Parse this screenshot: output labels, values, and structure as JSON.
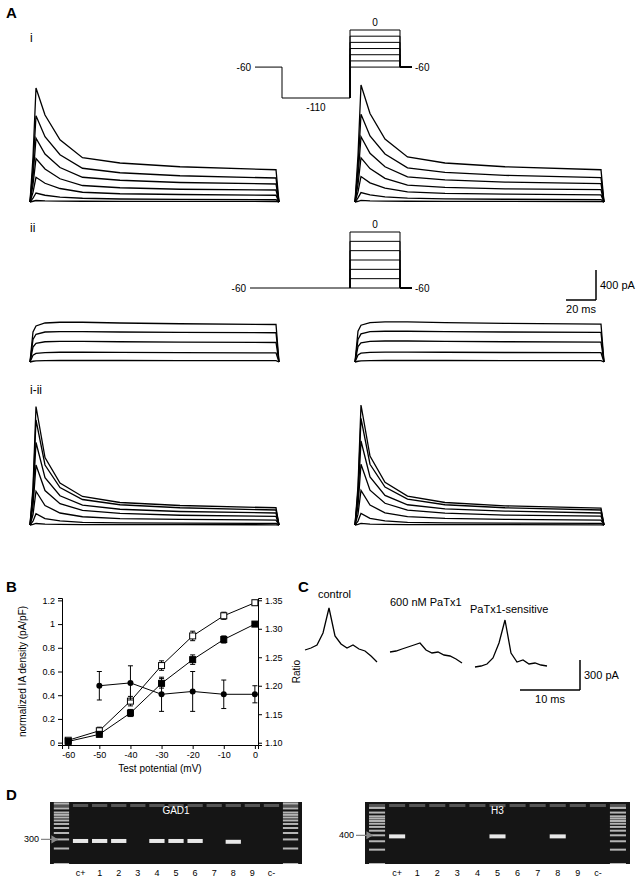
{
  "chart_data": [
    {
      "type": "traces",
      "title": "A",
      "subtitle": "i",
      "color": "#000000",
      "x": [
        0,
        2,
        4,
        10,
        20,
        35,
        60,
        100,
        164,
        166
      ],
      "series": [
        {
          "values": [
            0,
            600,
            1520,
            1160,
            830,
            590,
            520,
            470,
            430,
            0
          ]
        },
        {
          "values": [
            0,
            450,
            1150,
            870,
            630,
            450,
            390,
            350,
            320,
            0
          ]
        },
        {
          "values": [
            0,
            330,
            850,
            640,
            460,
            330,
            290,
            260,
            240,
            0
          ]
        },
        {
          "values": [
            0,
            230,
            580,
            440,
            310,
            220,
            190,
            170,
            160,
            0
          ]
        },
        {
          "values": [
            0,
            130,
            330,
            250,
            180,
            130,
            110,
            100,
            90,
            0
          ]
        },
        {
          "values": [
            0,
            50,
            120,
            90,
            65,
            50,
            40,
            35,
            30,
            0
          ]
        },
        {
          "values": [
            0,
            10,
            20,
            15,
            12,
            10,
            8,
            8,
            7,
            0
          ]
        }
      ],
      "protocol": {
        "holding": -60,
        "prepulse": -110,
        "steps": [
          -60,
          -50,
          -40,
          -30,
          -20,
          -10,
          0
        ]
      }
    },
    {
      "type": "traces",
      "color": "#000000",
      "x": [
        0,
        2,
        4,
        10,
        20,
        35,
        60,
        100,
        164,
        166
      ],
      "series": [
        {
          "values": [
            0,
            620,
            1560,
            1180,
            840,
            600,
            520,
            470,
            430,
            0
          ]
        },
        {
          "values": [
            0,
            460,
            1170,
            880,
            640,
            455,
            395,
            355,
            325,
            0
          ]
        },
        {
          "values": [
            0,
            340,
            870,
            650,
            470,
            335,
            295,
            265,
            245,
            0
          ]
        },
        {
          "values": [
            0,
            235,
            590,
            445,
            315,
            225,
            195,
            175,
            165,
            0
          ]
        },
        {
          "values": [
            0,
            135,
            340,
            255,
            185,
            135,
            115,
            105,
            95,
            0
          ]
        },
        {
          "values": [
            0,
            55,
            125,
            95,
            68,
            52,
            42,
            37,
            32,
            0
          ]
        },
        {
          "values": [
            0,
            10,
            22,
            16,
            12,
            10,
            9,
            8,
            7,
            0
          ]
        }
      ]
    },
    {
      "type": "traces",
      "subtitle": "ii",
      "color": "#000000",
      "x": [
        0,
        2,
        4,
        10,
        20,
        35,
        60,
        100,
        164,
        166
      ],
      "series": [
        {
          "values": [
            0,
            400,
            480,
            520,
            530,
            530,
            520,
            510,
            500,
            0
          ]
        },
        {
          "values": [
            0,
            300,
            370,
            400,
            405,
            405,
            400,
            395,
            390,
            0
          ]
        },
        {
          "values": [
            0,
            200,
            250,
            270,
            275,
            275,
            270,
            265,
            260,
            0
          ]
        },
        {
          "values": [
            0,
            90,
            115,
            125,
            130,
            130,
            128,
            125,
            122,
            0
          ]
        },
        {
          "values": [
            0,
            10,
            15,
            18,
            20,
            20,
            20,
            19,
            18,
            0
          ]
        }
      ],
      "protocol": {
        "holding": -60,
        "steps": [
          -60,
          -50,
          -40,
          -30,
          -20,
          -10,
          0
        ]
      }
    },
    {
      "type": "traces",
      "color": "#000000",
      "x": [
        0,
        2,
        4,
        10,
        20,
        35,
        60,
        100,
        164,
        166
      ],
      "series": [
        {
          "values": [
            0,
            410,
            490,
            525,
            535,
            535,
            525,
            515,
            505,
            0
          ]
        },
        {
          "values": [
            0,
            300,
            375,
            405,
            410,
            410,
            405,
            400,
            395,
            0
          ]
        },
        {
          "values": [
            0,
            205,
            255,
            275,
            280,
            280,
            275,
            270,
            265,
            0
          ]
        },
        {
          "values": [
            0,
            95,
            118,
            128,
            132,
            132,
            130,
            127,
            124,
            0
          ]
        },
        {
          "values": [
            0,
            10,
            15,
            18,
            20,
            20,
            20,
            19,
            18,
            0
          ]
        }
      ],
      "scale_bar": {
        "x": 20,
        "y": 400,
        "x_label": "20 ms",
        "y_label": "400 pA"
      }
    },
    {
      "type": "traces",
      "subtitle": "i-ii",
      "color": "#000000",
      "x": [
        0,
        2,
        4,
        10,
        20,
        35,
        60,
        100,
        164,
        166
      ],
      "series": [
        {
          "values": [
            0,
            500,
            1580,
            900,
            560,
            380,
            300,
            260,
            230,
            0
          ]
        },
        {
          "values": [
            0,
            440,
            1400,
            800,
            500,
            340,
            270,
            230,
            200,
            0
          ]
        },
        {
          "values": [
            0,
            350,
            1100,
            630,
            390,
            265,
            210,
            180,
            160,
            0
          ]
        },
        {
          "values": [
            0,
            250,
            800,
            460,
            285,
            195,
            155,
            130,
            115,
            0
          ]
        },
        {
          "values": [
            0,
            140,
            450,
            260,
            160,
            110,
            85,
            75,
            65,
            0
          ]
        },
        {
          "values": [
            0,
            50,
            150,
            85,
            55,
            35,
            28,
            25,
            22,
            0
          ]
        },
        {
          "values": [
            0,
            8,
            20,
            12,
            8,
            5,
            4,
            4,
            3,
            0
          ]
        }
      ]
    },
    {
      "type": "traces",
      "color": "#000000",
      "x": [
        0,
        2,
        4,
        10,
        20,
        35,
        60,
        100,
        164,
        166
      ],
      "series": [
        {
          "values": [
            0,
            520,
            1600,
            920,
            570,
            385,
            300,
            255,
            225,
            0
          ]
        },
        {
          "values": [
            0,
            450,
            1420,
            810,
            505,
            345,
            270,
            230,
            200,
            0
          ]
        },
        {
          "values": [
            0,
            355,
            1120,
            640,
            395,
            270,
            215,
            185,
            160,
            0
          ]
        },
        {
          "values": [
            0,
            255,
            810,
            465,
            290,
            198,
            158,
            132,
            118,
            0
          ]
        },
        {
          "values": [
            0,
            145,
            460,
            265,
            163,
            112,
            87,
            76,
            66,
            0
          ]
        },
        {
          "values": [
            0,
            52,
            155,
            88,
            56,
            36,
            29,
            26,
            23,
            0
          ]
        },
        {
          "values": [
            0,
            8,
            21,
            12,
            8,
            5,
            4,
            4,
            3,
            0
          ]
        }
      ]
    },
    {
      "type": "traces",
      "title": "C",
      "color": "#000000",
      "x": [
        0,
        1,
        2,
        3,
        4,
        5,
        6,
        7,
        8,
        9,
        10,
        11,
        12
      ],
      "series": [
        {
          "name": "control",
          "values": [
            180,
            200,
            230,
            350,
            600,
            320,
            240,
            200,
            230,
            190,
            170,
            120,
            60
          ]
        },
        {
          "name": "600 nM PaTx1",
          "values": [
            160,
            170,
            190,
            210,
            230,
            250,
            180,
            150,
            160,
            130,
            120,
            90,
            50
          ]
        },
        {
          "name": "PaTx1-sensitive",
          "values": [
            10,
            20,
            40,
            100,
            250,
            480,
            150,
            60,
            80,
            40,
            50,
            30,
            20
          ]
        }
      ],
      "scale_bar": {
        "x": 10,
        "y": 300,
        "x_label": "10 ms",
        "y_label": "300 pA"
      }
    },
    {
      "type": "line",
      "title": "B",
      "x": [
        -60,
        -50,
        -40,
        -30,
        -20,
        -10,
        0
      ],
      "xlim": [
        -62,
        1
      ],
      "xticks": [
        -60,
        -50,
        -40,
        -30,
        -20,
        -10,
        0
      ],
      "ylim": [
        -0.02,
        1.22
      ],
      "yticks": [
        0,
        0.2,
        0.4,
        0.6,
        0.8,
        1,
        1.2
      ],
      "y2lim": [
        1.096,
        1.354
      ],
      "y2ticks": [
        {
          "value": 1.1,
          "label": "1.10"
        },
        1.15,
        {
          "value": 1.2,
          "label": "1.20"
        },
        1.25,
        {
          "value": 1.3,
          "label": "1.30"
        },
        1.35
      ],
      "x_label": "Test potential (mV)",
      "y_label": "normalized IA density (pA/pF)",
      "y2_label": "Ratio",
      "series": [
        {
          "color": "#000000",
          "marker": "open-square",
          "values": [
            0.02,
            0.1,
            0.35,
            0.65,
            0.9,
            1.07,
            1.18
          ],
          "errors": [
            0.01,
            0.03,
            0.04,
            0.04,
            0.04,
            0.03,
            0.02
          ]
        },
        {
          "color": "#000000",
          "marker": "square",
          "values": [
            0.01,
            0.07,
            0.25,
            0.5,
            0.7,
            0.87,
            1.0
          ],
          "errors": [
            0.01,
            0.02,
            0.03,
            0.04,
            0.04,
            0.03,
            0.01
          ]
        },
        {
          "color": "#000000",
          "marker": "circle",
          "axis": "y2",
          "values": [
            null,
            1.2,
            1.205,
            1.185,
            1.19,
            1.185,
            1.185
          ],
          "errors": [
            null,
            0.025,
            0.03,
            0.03,
            0.035,
            0.025,
            0.015
          ]
        }
      ]
    },
    {
      "type": "gel",
      "title": "D",
      "subtitle": "GAD1",
      "log": "y",
      "categories": [
        "c+",
        "1",
        "2",
        "3",
        "4",
        "5",
        "6",
        "7",
        "8",
        "9",
        "c-"
      ],
      "values": [
        280,
        280,
        280,
        null,
        280,
        280,
        280,
        null,
        270,
        null,
        null
      ],
      "ladder": [
        100,
        200,
        300,
        400,
        500,
        600,
        700,
        800,
        900,
        1000,
        1200,
        1500
      ],
      "ylim": [
        100,
        1600
      ],
      "yticks": [
        300
      ]
    },
    {
      "type": "gel",
      "subtitle": "H3",
      "log": "y",
      "categories": [
        "c+",
        "1",
        "2",
        "3",
        "4",
        "5",
        "6",
        "7",
        "8",
        "9",
        "c-"
      ],
      "values": [
        380,
        null,
        null,
        null,
        null,
        380,
        null,
        null,
        380,
        null,
        null
      ],
      "ladder": [
        100,
        200,
        300,
        400,
        500,
        600,
        700,
        800,
        900,
        1000,
        1200,
        1500
      ],
      "ylim": [
        100,
        2000
      ],
      "yticks": [
        400
      ]
    }
  ]
}
